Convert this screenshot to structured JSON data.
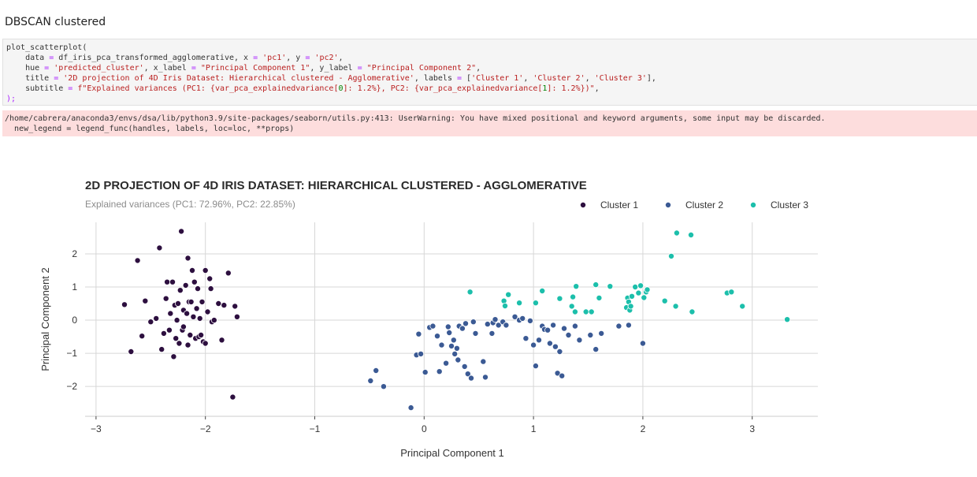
{
  "heading": "DBSCAN clustered",
  "code_lines": [
    [
      {
        "t": "plot_scatterplot("
      }
    ],
    [
      {
        "t": "    data "
      },
      {
        "t": "=",
        "c": "op"
      },
      {
        "t": " df_iris_pca_transformed_agglomerative, x "
      },
      {
        "t": "=",
        "c": "op"
      },
      {
        "t": " "
      },
      {
        "t": "'pc1'",
        "c": "str"
      },
      {
        "t": ", y "
      },
      {
        "t": "=",
        "c": "op"
      },
      {
        "t": " "
      },
      {
        "t": "'pc2'",
        "c": "str"
      },
      {
        "t": ","
      }
    ],
    [
      {
        "t": "    hue "
      },
      {
        "t": "=",
        "c": "op"
      },
      {
        "t": " "
      },
      {
        "t": "'predicted_cluster'",
        "c": "str"
      },
      {
        "t": ", x_label "
      },
      {
        "t": "=",
        "c": "op"
      },
      {
        "t": " "
      },
      {
        "t": "\"Principal Component 1\"",
        "c": "str"
      },
      {
        "t": ", y_label "
      },
      {
        "t": "=",
        "c": "op"
      },
      {
        "t": " "
      },
      {
        "t": "\"Principal Component 2\"",
        "c": "str"
      },
      {
        "t": ","
      }
    ],
    [
      {
        "t": "    title "
      },
      {
        "t": "=",
        "c": "op"
      },
      {
        "t": " "
      },
      {
        "t": "'2D projection of 4D Iris Dataset: Hierarchical clustered - Agglomerative'",
        "c": "str"
      },
      {
        "t": ", labels "
      },
      {
        "t": "=",
        "c": "op"
      },
      {
        "t": " ["
      },
      {
        "t": "'Cluster 1'",
        "c": "str"
      },
      {
        "t": ", "
      },
      {
        "t": "'Cluster 2'",
        "c": "str"
      },
      {
        "t": ", "
      },
      {
        "t": "'Cluster 3'",
        "c": "str"
      },
      {
        "t": "],"
      }
    ],
    [
      {
        "t": "    subtitle "
      },
      {
        "t": "=",
        "c": "op"
      },
      {
        "t": " "
      },
      {
        "t": "f\"Explained variances (PC1: {var_pca_explainedvariance[",
        "c": "str"
      },
      {
        "t": "0",
        "c": "num"
      },
      {
        "t": "]: 1.2%}, PC2: {var_pca_explainedvariance[",
        "c": "str"
      },
      {
        "t": "1",
        "c": "num"
      },
      {
        "t": "]: 1.2%})\"",
        "c": "str"
      },
      {
        "t": ","
      }
    ],
    [
      {
        "t": ");",
        "c": "op"
      }
    ]
  ],
  "stderr_lines": [
    "/home/cabrera/anaconda3/envs/dsa/lib/python3.9/site-packages/seaborn/utils.py:413: UserWarning: You have mixed positional and keyword arguments, some input may be discarded.",
    "  new_legend = legend_func(handles, labels, loc=loc, **props)"
  ],
  "token_colors": {
    "str": "#ba2121",
    "op": "#aa22ff",
    "num": "#008000"
  },
  "chart_data": {
    "type": "scatter",
    "title": "2D PROJECTION OF 4D IRIS DATASET: HIERARCHICAL CLUSTERED - AGGLOMERATIVE",
    "subtitle": "Explained variances (PC1:  72.96%, PC2:  22.85%)",
    "xlabel": "Principal Component 1",
    "ylabel": "Principal Component 2",
    "xlim": [
      -3.1,
      3.6
    ],
    "ylim": [
      -2.9,
      2.95
    ],
    "xticks": [
      -3,
      -2,
      -1,
      0,
      1,
      2,
      3
    ],
    "xtick_labels": [
      "−3",
      "−2",
      "−1",
      "0",
      "1",
      "2",
      "3"
    ],
    "yticks": [
      -2,
      -1,
      0,
      1,
      2
    ],
    "ytick_labels": [
      "−2",
      "−1",
      "0",
      "1",
      "2"
    ],
    "grid": true,
    "legend_position": "top-right",
    "series": [
      {
        "name": "Cluster 1",
        "color": "#2d0f3f",
        "points": [
          [
            -2.74,
            0.47
          ],
          [
            -2.68,
            -0.95
          ],
          [
            -2.62,
            1.8
          ],
          [
            -2.58,
            -0.48
          ],
          [
            -2.55,
            0.58
          ],
          [
            -2.5,
            -0.05
          ],
          [
            -2.45,
            0.05
          ],
          [
            -2.42,
            2.18
          ],
          [
            -2.4,
            -0.88
          ],
          [
            -2.38,
            -0.4
          ],
          [
            -2.36,
            0.65
          ],
          [
            -2.35,
            1.15
          ],
          [
            -2.33,
            -0.3
          ],
          [
            -2.32,
            0.2
          ],
          [
            -2.3,
            1.15
          ],
          [
            -2.29,
            -1.1
          ],
          [
            -2.28,
            0.45
          ],
          [
            -2.27,
            -0.55
          ],
          [
            -2.26,
            0.0
          ],
          [
            -2.25,
            0.5
          ],
          [
            -2.24,
            -0.7
          ],
          [
            -2.23,
            0.9
          ],
          [
            -2.22,
            2.68
          ],
          [
            -2.21,
            -0.3
          ],
          [
            -2.2,
            0.3
          ],
          [
            -2.2,
            -0.2
          ],
          [
            -2.18,
            1.05
          ],
          [
            -2.17,
            0.2
          ],
          [
            -2.16,
            -0.75
          ],
          [
            -2.16,
            1.87
          ],
          [
            -2.15,
            0.55
          ],
          [
            -2.14,
            -0.45
          ],
          [
            -2.13,
            0.55
          ],
          [
            -2.12,
            1.5
          ],
          [
            -2.11,
            0.1
          ],
          [
            -2.1,
            1.15
          ],
          [
            -2.09,
            -0.55
          ],
          [
            -2.08,
            0.35
          ],
          [
            -2.07,
            0.95
          ],
          [
            -2.06,
            -0.5
          ],
          [
            -2.05,
            0.05
          ],
          [
            -2.04,
            -0.45
          ],
          [
            -2.03,
            0.55
          ],
          [
            -2.02,
            -0.65
          ],
          [
            -2.0,
            -0.7
          ],
          [
            -2.0,
            1.5
          ],
          [
            -1.98,
            0.25
          ],
          [
            -1.96,
            1.25
          ],
          [
            -1.95,
            0.95
          ],
          [
            -1.94,
            -0.05
          ],
          [
            -1.92,
            0.0
          ],
          [
            -1.88,
            0.5
          ],
          [
            -1.85,
            -0.6
          ],
          [
            -1.83,
            0.45
          ],
          [
            -1.79,
            1.42
          ],
          [
            -1.75,
            -2.32
          ],
          [
            -1.73,
            0.42
          ],
          [
            -1.71,
            0.1
          ]
        ]
      },
      {
        "name": "Cluster 2",
        "color": "#3b5a94",
        "points": [
          [
            -0.49,
            -1.83
          ],
          [
            -0.44,
            -1.52
          ],
          [
            -0.37,
            -2.0
          ],
          [
            -0.12,
            -2.64
          ],
          [
            -0.07,
            -1.05
          ],
          [
            -0.05,
            -0.42
          ],
          [
            -0.03,
            -1.02
          ],
          [
            0.01,
            -1.57
          ],
          [
            0.05,
            -0.22
          ],
          [
            0.08,
            -0.18
          ],
          [
            0.12,
            -0.48
          ],
          [
            0.14,
            -1.55
          ],
          [
            0.16,
            -0.75
          ],
          [
            0.2,
            -1.3
          ],
          [
            0.22,
            -0.2
          ],
          [
            0.23,
            -0.38
          ],
          [
            0.25,
            -0.78
          ],
          [
            0.27,
            -0.6
          ],
          [
            0.28,
            -1.02
          ],
          [
            0.3,
            -0.85
          ],
          [
            0.31,
            -1.2
          ],
          [
            0.32,
            -0.18
          ],
          [
            0.35,
            -0.25
          ],
          [
            0.37,
            -1.4
          ],
          [
            0.38,
            -0.1
          ],
          [
            0.4,
            -1.62
          ],
          [
            0.43,
            -1.75
          ],
          [
            0.45,
            -0.05
          ],
          [
            0.47,
            -0.4
          ],
          [
            0.54,
            -1.25
          ],
          [
            0.56,
            -1.72
          ],
          [
            0.58,
            -0.12
          ],
          [
            0.62,
            -0.4
          ],
          [
            0.63,
            -0.08
          ],
          [
            0.65,
            0.02
          ],
          [
            0.68,
            -0.15
          ],
          [
            0.72,
            -0.05
          ],
          [
            0.75,
            -0.15
          ],
          [
            0.83,
            0.1
          ],
          [
            0.87,
            0.0
          ],
          [
            0.9,
            0.05
          ],
          [
            0.93,
            -0.55
          ],
          [
            0.97,
            -0.02
          ],
          [
            1.0,
            -0.75
          ],
          [
            1.02,
            -1.38
          ],
          [
            1.05,
            -0.6
          ],
          [
            1.08,
            -0.18
          ],
          [
            1.1,
            -0.28
          ],
          [
            1.13,
            -0.3
          ],
          [
            1.15,
            -0.7
          ],
          [
            1.18,
            -0.15
          ],
          [
            1.2,
            -0.8
          ],
          [
            1.22,
            -1.6
          ],
          [
            1.24,
            -0.95
          ],
          [
            1.26,
            -1.68
          ],
          [
            1.28,
            -0.25
          ],
          [
            1.32,
            -0.45
          ],
          [
            1.38,
            -0.18
          ],
          [
            1.42,
            -0.6
          ],
          [
            1.52,
            -0.45
          ],
          [
            1.57,
            -0.88
          ],
          [
            1.62,
            -0.4
          ],
          [
            1.78,
            -0.18
          ],
          [
            1.87,
            -0.15
          ],
          [
            2.0,
            -0.7
          ]
        ]
      },
      {
        "name": "Cluster 3",
        "color": "#1cbfab",
        "points": [
          [
            0.42,
            0.85
          ],
          [
            0.73,
            0.58
          ],
          [
            0.74,
            0.43
          ],
          [
            0.77,
            0.77
          ],
          [
            0.87,
            0.52
          ],
          [
            1.02,
            0.52
          ],
          [
            1.08,
            0.88
          ],
          [
            1.24,
            0.65
          ],
          [
            1.35,
            0.42
          ],
          [
            1.36,
            0.7
          ],
          [
            1.38,
            0.25
          ],
          [
            1.39,
            1.02
          ],
          [
            1.48,
            0.25
          ],
          [
            1.53,
            0.25
          ],
          [
            1.57,
            1.07
          ],
          [
            1.6,
            0.67
          ],
          [
            1.7,
            1.02
          ],
          [
            1.85,
            0.38
          ],
          [
            1.86,
            0.67
          ],
          [
            1.87,
            0.55
          ],
          [
            1.88,
            0.3
          ],
          [
            1.89,
            0.42
          ],
          [
            1.9,
            0.72
          ],
          [
            1.93,
            1.0
          ],
          [
            1.96,
            0.82
          ],
          [
            1.98,
            1.04
          ],
          [
            2.01,
            0.68
          ],
          [
            2.03,
            0.85
          ],
          [
            2.04,
            0.92
          ],
          [
            2.2,
            0.58
          ],
          [
            2.26,
            1.93
          ],
          [
            2.3,
            0.42
          ],
          [
            2.31,
            2.63
          ],
          [
            2.44,
            2.57
          ],
          [
            2.45,
            0.25
          ],
          [
            2.77,
            0.82
          ],
          [
            2.81,
            0.85
          ],
          [
            2.91,
            0.42
          ],
          [
            3.32,
            0.02
          ]
        ]
      }
    ]
  }
}
